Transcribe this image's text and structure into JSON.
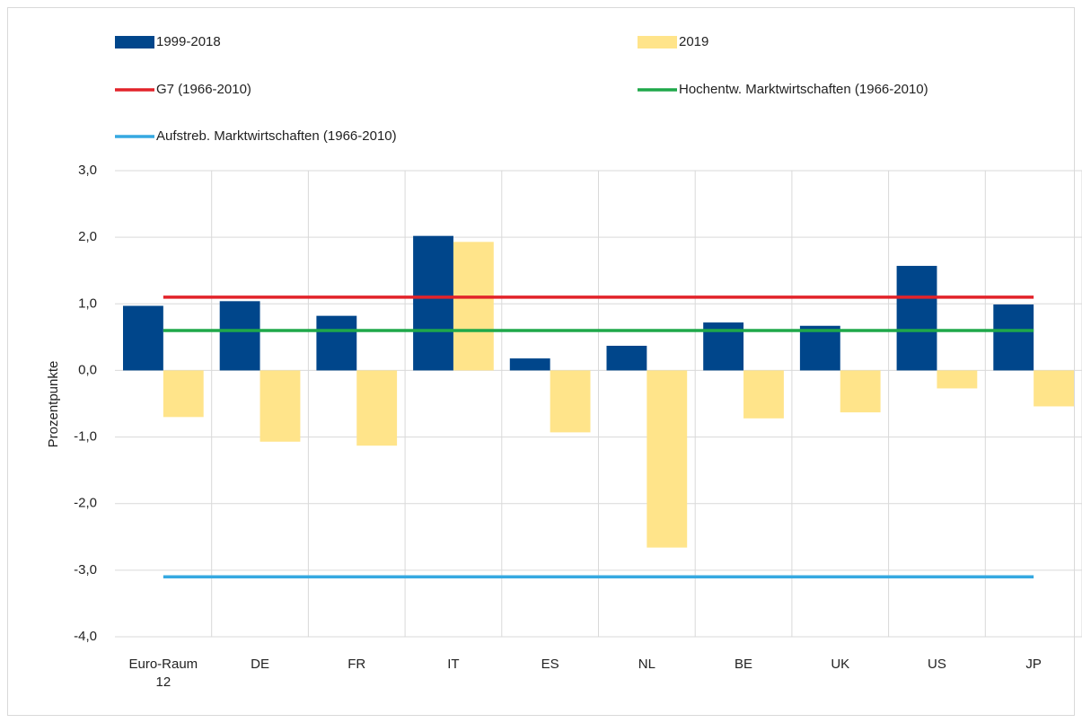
{
  "chart_data": {
    "type": "bar",
    "y_label": "Prozentpunkte",
    "categories": [
      "Euro-Raum 12",
      "DE",
      "FR",
      "IT",
      "ES",
      "NL",
      "BE",
      "UK",
      "US",
      "JP"
    ],
    "series": [
      {
        "name": "1999-2018",
        "type": "bar",
        "color": "#00468b",
        "values": [
          0.97,
          1.04,
          0.82,
          2.02,
          0.18,
          0.37,
          0.72,
          0.67,
          1.57,
          0.99
        ]
      },
      {
        "name": "2019",
        "type": "bar",
        "color": "#ffe48a",
        "values": [
          -0.7,
          -1.07,
          -1.13,
          1.93,
          -0.93,
          -2.66,
          -0.72,
          -0.63,
          -0.27,
          -0.54
        ]
      },
      {
        "name": "G7 (1966-2010)",
        "type": "line",
        "color": "#e2232a",
        "values": [
          1.1,
          1.1,
          1.1,
          1.1,
          1.1,
          1.1,
          1.1,
          1.1,
          1.1,
          1.1
        ]
      },
      {
        "name": "Hochentw. Marktwirtschaften (1966-2010)",
        "type": "line",
        "color": "#1fa84a",
        "values": [
          0.6,
          0.6,
          0.6,
          0.6,
          0.6,
          0.6,
          0.6,
          0.6,
          0.6,
          0.6
        ]
      },
      {
        "name": "Aufstreb. Marktwirtschaften (1966-2010)",
        "type": "line",
        "color": "#36a9e1",
        "values": [
          -3.1,
          -3.1,
          -3.1,
          -3.1,
          -3.1,
          -3.1,
          -3.1,
          -3.1,
          -3.1,
          -3.1
        ]
      }
    ],
    "ylim": [
      -4,
      3
    ],
    "yticks": [
      {
        "value": -4,
        "label": "-4,0"
      },
      {
        "value": -3,
        "label": "-3,0"
      },
      {
        "value": -2,
        "label": "-2,0"
      },
      {
        "value": -1,
        "label": "-1,0"
      },
      {
        "value": 0,
        "label": "0,0"
      },
      {
        "value": 1,
        "label": "1,0"
      },
      {
        "value": 2,
        "label": "2,0"
      },
      {
        "value": 3,
        "label": "3,0"
      }
    ],
    "grid": true
  }
}
